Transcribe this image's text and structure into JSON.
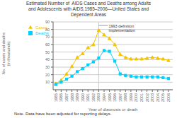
{
  "chart_data": {
    "type": "line",
    "title": "Estimated Number of  AIDS Cases and Deaths among Adults\nand Adolescents with AIDS,1985–2006—United States and\nDependent Areas",
    "xlabel": "Year of diagnosis or death",
    "ylabel": "No. of cases and deaths\n(in thousands)",
    "note": "Note. Data have been adjusted for reporting delays.",
    "x": [
      1985,
      1986,
      1987,
      1988,
      1989,
      1990,
      1991,
      1992,
      1993,
      1994,
      1995,
      1996,
      1997,
      1998,
      1999,
      2000,
      2001,
      2002,
      2003,
      2004,
      2005,
      2006
    ],
    "series": [
      {
        "name": "Cases",
        "color": "#f5c400",
        "marker": "triangle",
        "values": [
          8,
          13,
          21,
          31,
          43,
          48,
          56,
          60,
          79,
          73,
          68,
          60,
          47,
          43,
          41,
          41,
          41,
          42,
          43,
          42,
          41,
          39
        ]
      },
      {
        "name": "Deaths",
        "color": "#00cfff",
        "marker": "square",
        "values": [
          7,
          10,
          14,
          18,
          24,
          28,
          33,
          37,
          42,
          52,
          51,
          38,
          21,
          19,
          18,
          17,
          17,
          17,
          17,
          17,
          16,
          15
        ]
      }
    ],
    "xlim": [
      1984.5,
      2006.8
    ],
    "xticks": [
      1985,
      1986,
      1987,
      1988,
      1989,
      1990,
      1991,
      1992,
      1993,
      1994,
      1995,
      1996,
      1997,
      1998,
      1999,
      2000,
      2001,
      2002,
      2003,
      2004,
      2005,
      2006
    ],
    "ylim": [
      0,
      90
    ],
    "yticks": [
      10,
      20,
      30,
      40,
      50,
      60,
      70,
      80,
      90
    ],
    "grid": "y",
    "legend": "upper left",
    "annotations": [
      {
        "x": 1993,
        "text": "1993 definition\nimplementation"
      }
    ]
  }
}
